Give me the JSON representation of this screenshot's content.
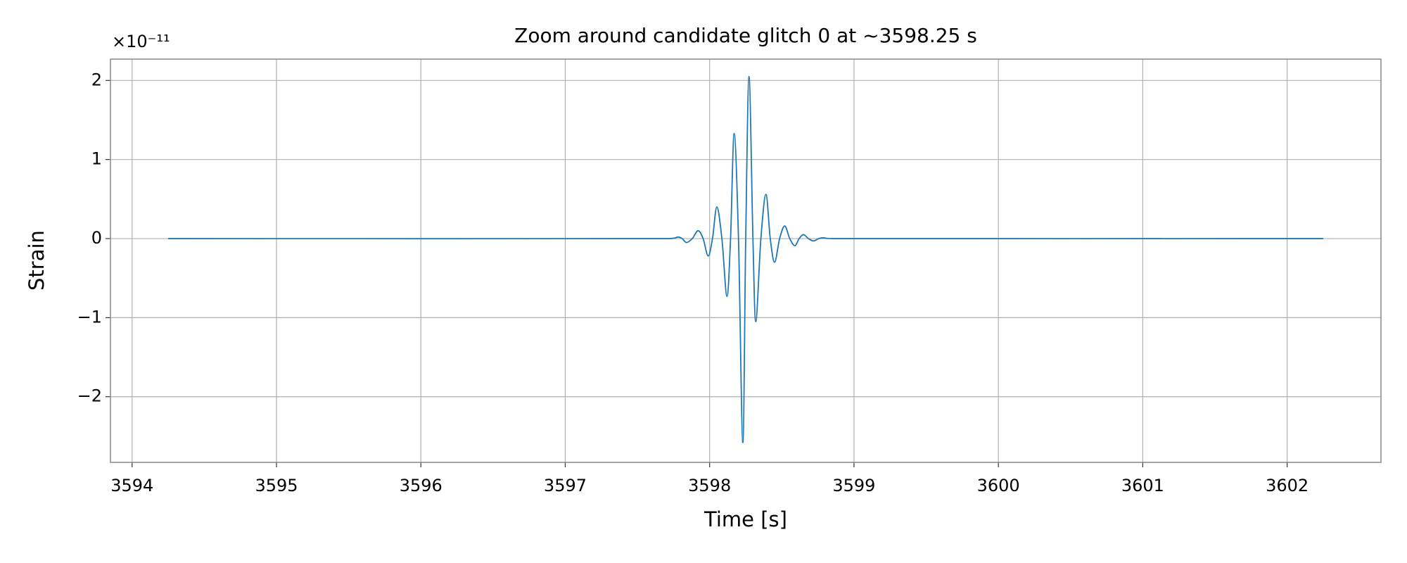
{
  "chart_data": {
    "type": "line",
    "title": "Zoom around candidate glitch 0 at ~3598.25 s",
    "x_label": "Time [s]",
    "y_label": "Strain",
    "y_multiplier": "×10⁻¹¹",
    "xlim": [
      3593.85,
      3602.65
    ],
    "ylim": [
      -2.83,
      2.27
    ],
    "xticks": [
      3594,
      3595,
      3596,
      3597,
      3598,
      3599,
      3600,
      3601,
      3602
    ],
    "yticks": [
      {
        "value": -2,
        "label": "−2"
      },
      {
        "value": -1,
        "label": "−1"
      },
      0,
      1,
      2
    ],
    "grid": true,
    "series": [
      {
        "color": "#1f77b4",
        "x": [
          3594.25,
          3597.72,
          3597.78,
          3597.81,
          3597.84,
          3597.88,
          3597.92,
          3597.955,
          3597.99,
          3598.02,
          3598.05,
          3598.085,
          3598.12,
          3598.145,
          3598.17,
          3598.2,
          3598.23,
          3598.25,
          3598.273,
          3598.3,
          3598.32,
          3598.355,
          3598.39,
          3598.42,
          3598.45,
          3598.485,
          3598.52,
          3598.555,
          3598.59,
          3598.62,
          3598.65,
          3598.685,
          3598.72,
          3598.755,
          3598.79,
          3598.85,
          3602.25
        ],
        "values": [
          0,
          0,
          0.02,
          0,
          -0.05,
          0,
          0.1,
          0,
          -0.22,
          0,
          0.4,
          0,
          -0.73,
          0,
          1.33,
          0,
          -2.58,
          0,
          2.05,
          0,
          -1.05,
          0,
          0.56,
          0,
          -0.3,
          0,
          0.16,
          0,
          -0.09,
          0,
          0.05,
          0,
          -0.03,
          0,
          0.01,
          0,
          0
        ]
      }
    ]
  }
}
